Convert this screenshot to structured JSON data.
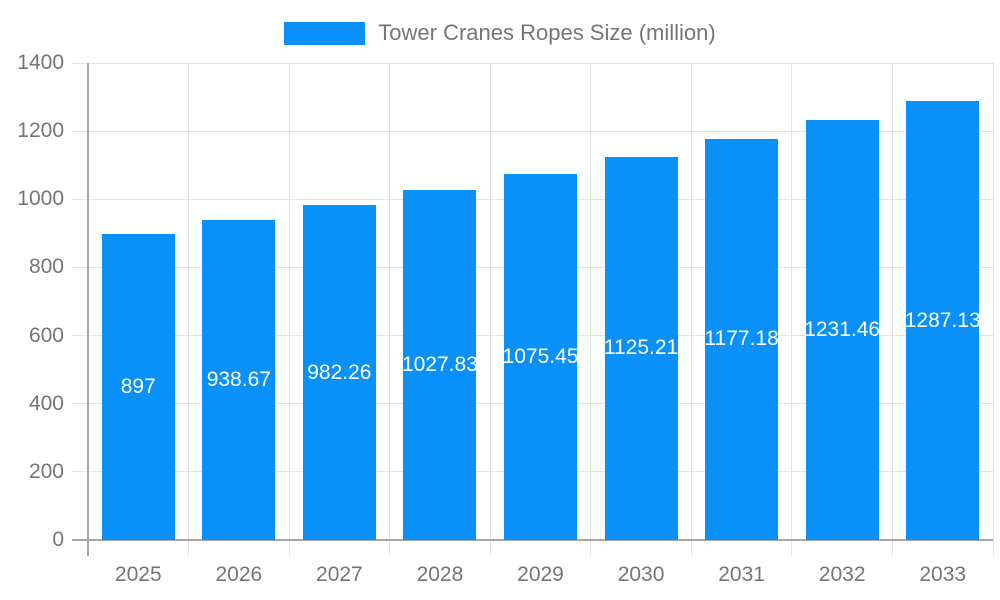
{
  "legend": {
    "label": "Tower Cranes Ropes Size (million)"
  },
  "chart_data": {
    "type": "bar",
    "title": "Tower Cranes Ropes Size (million)",
    "series_name": "Tower Cranes Ropes Size (million)",
    "categories": [
      "2025",
      "2026",
      "2027",
      "2028",
      "2029",
      "2030",
      "2031",
      "2032",
      "2033"
    ],
    "values": [
      897,
      938.67,
      982.26,
      1027.83,
      1075.45,
      1125.21,
      1177.18,
      1231.46,
      1287.13
    ],
    "value_labels": [
      "897",
      "938.67",
      "982.26",
      "1027.83",
      "1075.45",
      "1125.21",
      "1177.18",
      "1231.46",
      "1287.13"
    ],
    "xlabel": "",
    "ylabel": "",
    "ylim": [
      0,
      1400
    ],
    "ytick_step": 200,
    "ytick_labels": [
      "0",
      "200",
      "400",
      "600",
      "800",
      "1000",
      "1200",
      "1400"
    ],
    "grid": true,
    "legend_position": "top",
    "value_label_position": "inside-center",
    "colors": {
      "bar": "#0a90f9",
      "bar_value_label": "#ffffff",
      "axis_text": "#757575",
      "legend_text": "#757575",
      "gridline": "#e3e3e3",
      "axis_line": "#a6a6a6",
      "background": "#ffffff"
    }
  }
}
